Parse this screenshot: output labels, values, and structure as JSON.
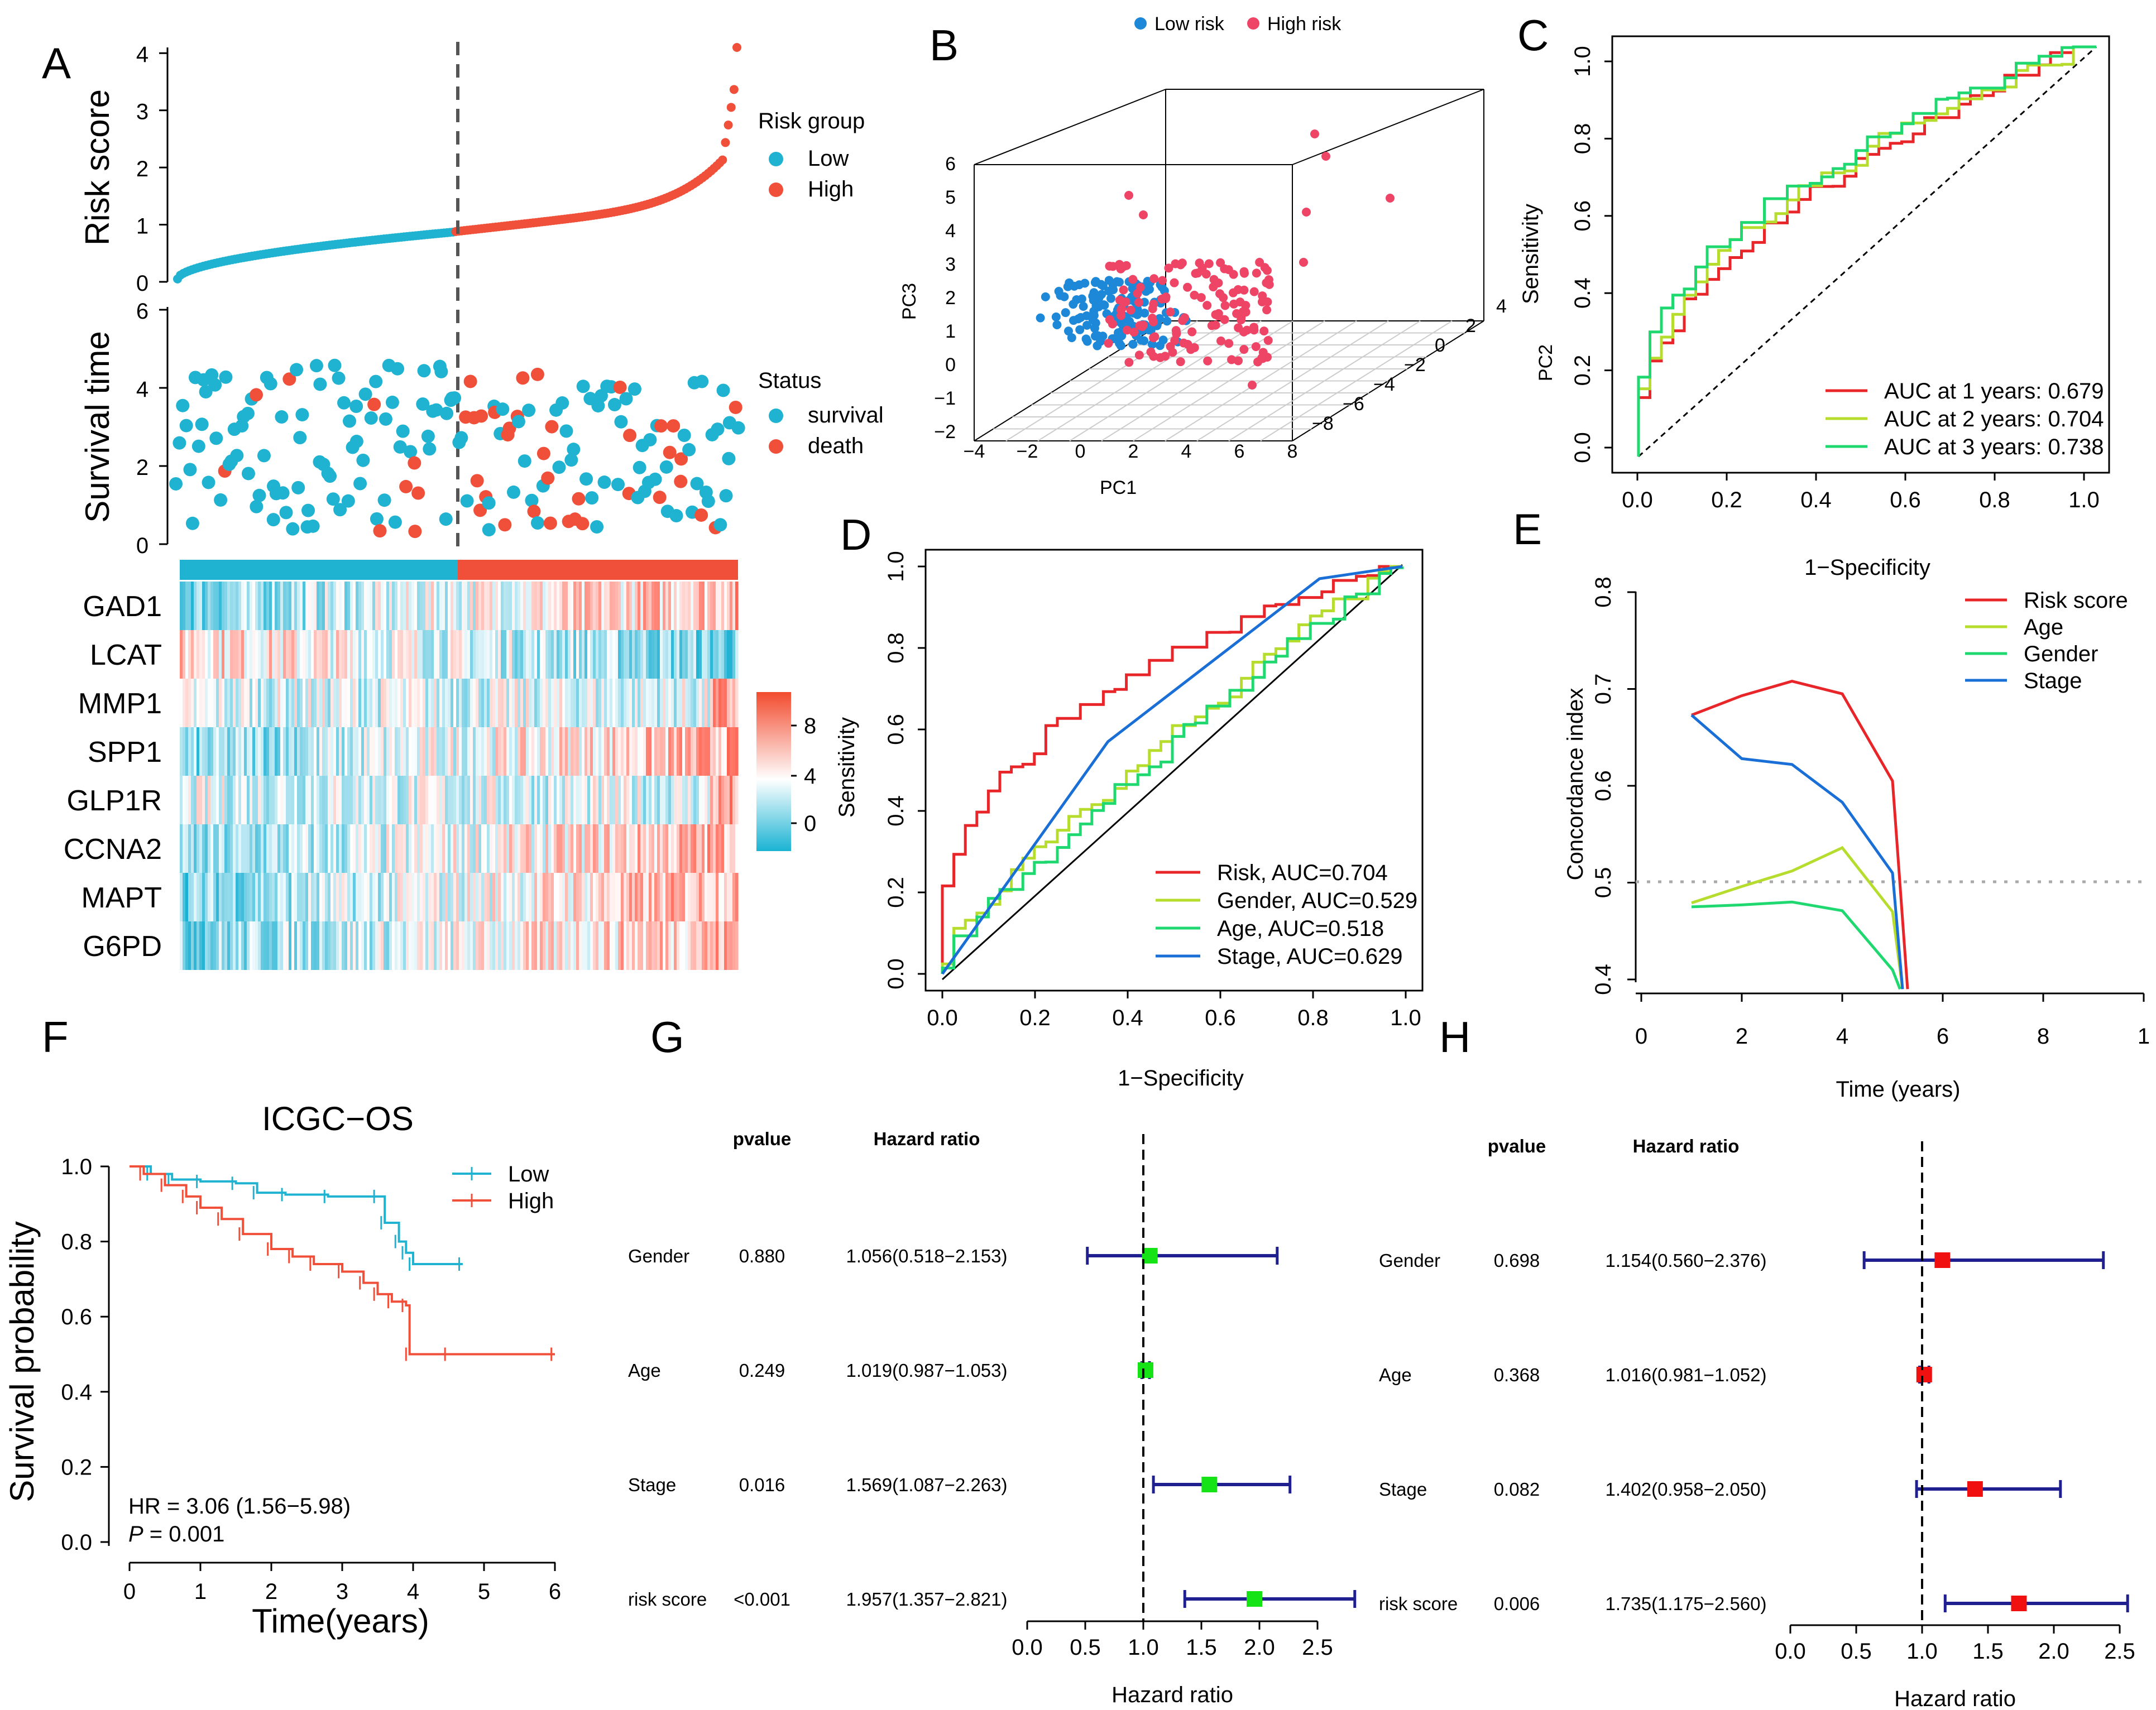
{
  "panels": {
    "A": "A",
    "B": "B",
    "C": "C",
    "D": "D",
    "E": "E",
    "F": "F",
    "G": "G",
    "H": "H"
  },
  "colors": {
    "low": "#1FB3D1",
    "high": "#F04F3A",
    "auc1": "#E8262A",
    "auc2": "#B6DC2E",
    "auc3": "#20D870",
    "stage": "#1A6FD6",
    "fp_green": "#16E316",
    "fp_red": "#F01010",
    "fp_line": "#1F1F8F",
    "pca_low": "#1E88D8",
    "pca_high": "#EE4466"
  },
  "chart_data": [
    {
      "panel": "A",
      "type": "scatter",
      "title": "",
      "risk_score": {
        "ylabel": "Risk score",
        "y_ticks": [
          "0",
          "1",
          "2",
          "3",
          "4"
        ],
        "ylim": [
          0,
          4.1
        ],
        "cutoff_index": 97,
        "n": 196,
        "cutoff_value": 0.87,
        "legend_title": "Risk group",
        "legend": [
          "Low",
          "High"
        ]
      },
      "survival": {
        "ylabel": "Survival time",
        "y_ticks": [
          "0",
          "2",
          "4",
          "6"
        ],
        "ylim": [
          0,
          6
        ],
        "legend_title": "Status",
        "legend": [
          "survival",
          "death"
        ]
      },
      "heatmap": {
        "genes": [
          "GAD1",
          "LCAT",
          "MMP1",
          "SPP1",
          "GLP1R",
          "CCNA2",
          "MAPT",
          "G6PD"
        ],
        "scale_ticks": [
          "8",
          "4",
          "0"
        ]
      }
    },
    {
      "panel": "B",
      "type": "scatter",
      "legend": [
        "Low risk",
        "High risk"
      ],
      "xlabel": "PC1",
      "ylabel": "PC3",
      "zlabel": "PC2",
      "x_ticks": [
        "−4",
        "−2",
        "0",
        "2",
        "4",
        "6",
        "8"
      ],
      "y_ticks": [
        "−2",
        "−1",
        "0",
        "1",
        "2",
        "3",
        "4",
        "5",
        "6"
      ],
      "z_ticks": [
        "−8",
        "−6",
        "−4",
        "−2",
        "0",
        "2",
        "4"
      ]
    },
    {
      "panel": "C",
      "type": "line",
      "xlabel": "1−Specificity",
      "ylabel": "Sensitivity",
      "x_ticks": [
        "0.0",
        "0.2",
        "0.4",
        "0.6",
        "0.8",
        "1.0"
      ],
      "y_ticks": [
        "0.0",
        "0.2",
        "0.4",
        "0.6",
        "0.8",
        "1.0"
      ],
      "series": [
        {
          "name": "AUC at 1 years: 0.679",
          "auc": 0.679
        },
        {
          "name": "AUC at 2 years: 0.704",
          "auc": 0.704
        },
        {
          "name": "AUC at 3 years: 0.738",
          "auc": 0.738
        }
      ]
    },
    {
      "panel": "D",
      "type": "line",
      "xlabel": "1−Specificity",
      "ylabel": "Sensitivity",
      "x_ticks": [
        "0.0",
        "0.2",
        "0.4",
        "0.6",
        "0.8",
        "1.0"
      ],
      "y_ticks": [
        "0.0",
        "0.2",
        "0.4",
        "0.6",
        "0.8",
        "1.0"
      ],
      "series": [
        {
          "name": "Risk, AUC=0.704",
          "auc": 0.704
        },
        {
          "name": "Gender, AUC=0.529",
          "auc": 0.529
        },
        {
          "name": "Age, AUC=0.518",
          "auc": 0.518
        },
        {
          "name": "Stage, AUC=0.629",
          "auc": 0.629
        }
      ]
    },
    {
      "panel": "E",
      "type": "line",
      "xlabel": "Time (years)",
      "ylabel": "Concordance index",
      "x_ticks": [
        "0",
        "2",
        "4",
        "6",
        "8",
        "1"
      ],
      "y_ticks": [
        "0.4",
        "0.5",
        "0.6",
        "0.7",
        "0.8"
      ],
      "reference": 0.5,
      "series": [
        {
          "name": "Risk score",
          "x": [
            1,
            2,
            3,
            4,
            5,
            5.3
          ],
          "y": [
            0.673,
            0.693,
            0.708,
            0.695,
            0.605,
            0.39
          ]
        },
        {
          "name": "Age",
          "x": [
            1,
            2,
            3,
            4,
            5,
            5.2
          ],
          "y": [
            0.479,
            0.496,
            0.512,
            0.536,
            0.47,
            0.39
          ]
        },
        {
          "name": "Gender",
          "x": [
            1,
            2,
            3,
            4,
            5,
            5.15
          ],
          "y": [
            0.475,
            0.477,
            0.48,
            0.471,
            0.41,
            0.39
          ]
        },
        {
          "name": "Stage",
          "x": [
            1,
            2,
            3,
            4,
            5,
            5.2
          ],
          "y": [
            0.673,
            0.628,
            0.622,
            0.583,
            0.51,
            0.39
          ]
        }
      ]
    },
    {
      "panel": "F",
      "type": "line",
      "title": "ICGC−OS",
      "xlabel": "Time(years)",
      "ylabel": "Survival probability",
      "x_ticks": [
        "0",
        "1",
        "2",
        "3",
        "4",
        "5",
        "6"
      ],
      "y_ticks": [
        "0.0",
        "0.2",
        "0.4",
        "0.6",
        "0.8",
        "1.0"
      ],
      "hr_text": "HR = 3.06 (1.56−5.98)",
      "p_label": "P",
      "p_text": " = 0.001",
      "series": [
        {
          "name": "Low",
          "x": [
            0,
            0.3,
            0.6,
            1.0,
            1.5,
            1.8,
            2.2,
            2.8,
            3.5,
            3.6,
            3.8,
            3.9,
            4.0,
            4.7
          ],
          "y": [
            1.0,
            0.98,
            0.965,
            0.96,
            0.955,
            0.93,
            0.925,
            0.92,
            0.92,
            0.85,
            0.8,
            0.77,
            0.74,
            0.74
          ]
        },
        {
          "name": "High",
          "x": [
            0,
            0.2,
            0.5,
            0.8,
            1.0,
            1.3,
            1.6,
            2.0,
            2.3,
            2.6,
            3.0,
            3.3,
            3.5,
            3.7,
            3.9,
            3.95,
            4.5,
            6.0
          ],
          "y": [
            1.0,
            0.98,
            0.95,
            0.92,
            0.89,
            0.86,
            0.82,
            0.78,
            0.76,
            0.74,
            0.72,
            0.69,
            0.66,
            0.64,
            0.63,
            0.5,
            0.5,
            0.5
          ]
        }
      ]
    },
    {
      "panel": "G",
      "type": "table",
      "headers": {
        "pvalue": "pvalue",
        "hr": "Hazard ratio"
      },
      "xlabel": "Hazard ratio",
      "x_ticks": [
        "0.0",
        "0.5",
        "1.0",
        "1.5",
        "2.0",
        "2.5"
      ],
      "rows": [
        {
          "label": "Gender",
          "pvalue": "0.880",
          "hr_text": "1.056(0.518−2.153)",
          "hr": 1.056,
          "lo": 0.518,
          "hi": 2.153
        },
        {
          "label": "Age",
          "pvalue": "0.249",
          "hr_text": "1.019(0.987−1.053)",
          "hr": 1.019,
          "lo": 0.987,
          "hi": 1.053
        },
        {
          "label": "Stage",
          "pvalue": "0.016",
          "hr_text": "1.569(1.087−2.263)",
          "hr": 1.569,
          "lo": 1.087,
          "hi": 2.263
        },
        {
          "label": "risk score",
          "pvalue": "<0.001",
          "hr_text": "1.957(1.357−2.821)",
          "hr": 1.957,
          "lo": 1.357,
          "hi": 2.821
        }
      ]
    },
    {
      "panel": "H",
      "type": "table",
      "headers": {
        "pvalue": "pvalue",
        "hr": "Hazard ratio"
      },
      "xlabel": "Hazard ratio",
      "x_ticks": [
        "0.0",
        "0.5",
        "1.0",
        "1.5",
        "2.0",
        "2.5"
      ],
      "rows": [
        {
          "label": "Gender",
          "pvalue": "0.698",
          "hr_text": "1.154(0.560−2.376)",
          "hr": 1.154,
          "lo": 0.56,
          "hi": 2.376
        },
        {
          "label": "Age",
          "pvalue": "0.368",
          "hr_text": "1.016(0.981−1.052)",
          "hr": 1.016,
          "lo": 0.981,
          "hi": 1.052
        },
        {
          "label": "Stage",
          "pvalue": "0.082",
          "hr_text": "1.402(0.958−2.050)",
          "hr": 1.402,
          "lo": 0.958,
          "hi": 2.05
        },
        {
          "label": "risk score",
          "pvalue": "0.006",
          "hr_text": "1.735(1.175−2.560)",
          "hr": 1.735,
          "lo": 1.175,
          "hi": 2.56
        }
      ]
    }
  ]
}
